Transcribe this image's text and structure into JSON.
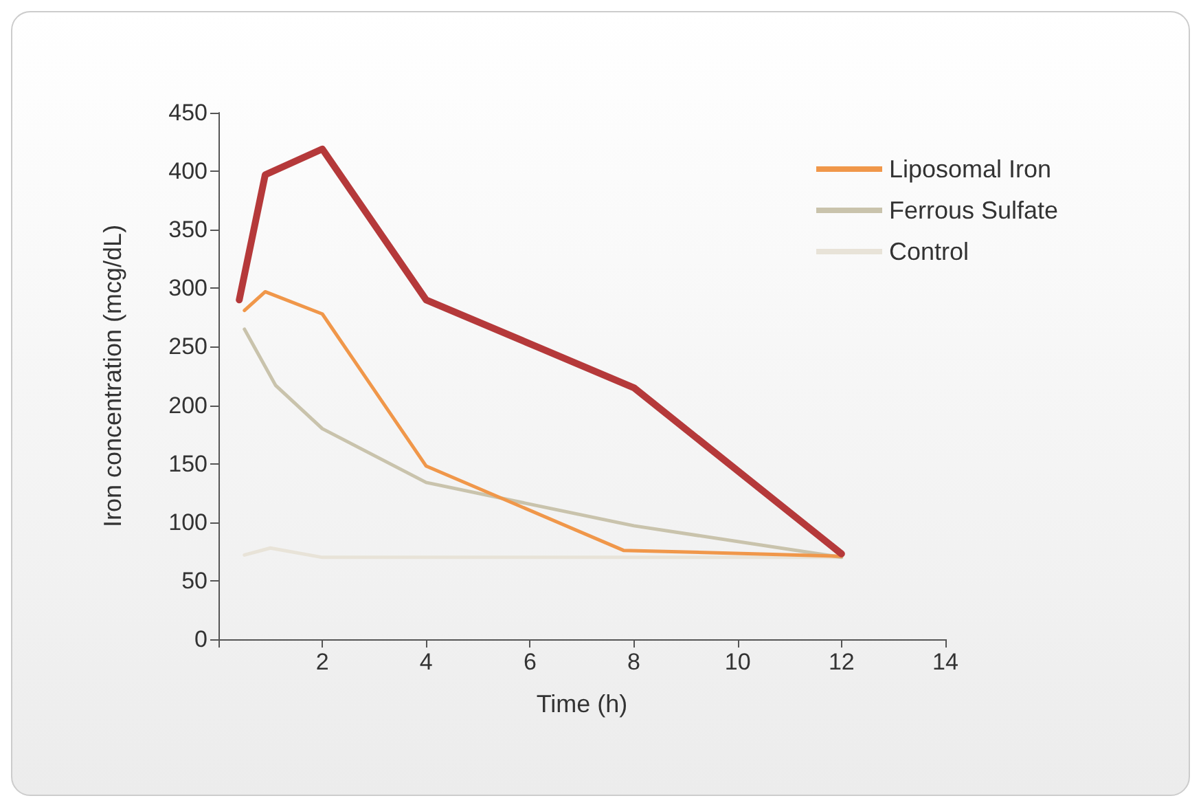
{
  "chart_data": {
    "type": "line",
    "xlabel": "Time (h)",
    "ylabel": "Iron concentration (mcg/dL)",
    "xlim": [
      0,
      14
    ],
    "xticks": [
      {
        "value": 0,
        "label": null
      },
      2,
      4,
      6,
      8,
      10,
      12,
      14
    ],
    "ylim": [
      0,
      450
    ],
    "yticks": [
      0,
      50,
      100,
      150,
      200,
      250,
      300,
      350,
      400,
      450
    ],
    "grid": false,
    "legend": "top right",
    "marker": "none",
    "line_style": "solid",
    "series": [
      {
        "color": "#b5393a",
        "x": [
          0.4,
          0.9,
          2,
          4,
          8,
          12
        ],
        "values": [
          290,
          397,
          419,
          290,
          215,
          73
        ]
      },
      {
        "name": "Liposomal Iron",
        "color": "#f0974a",
        "x": [
          0.5,
          0.9,
          2,
          4,
          7.8,
          12
        ],
        "values": [
          281,
          297,
          278,
          148,
          76,
          71
        ]
      },
      {
        "name": "Ferrous Sulfate",
        "color": "#c9c3ac",
        "x": [
          0.5,
          1.1,
          2,
          4,
          8,
          12
        ],
        "values": [
          265,
          217,
          180,
          134,
          97,
          70
        ]
      },
      {
        "name": "Control",
        "color": "#e8e3d8",
        "x": [
          0.5,
          1,
          2,
          12
        ],
        "values": [
          72,
          78,
          70,
          70
        ]
      }
    ]
  }
}
